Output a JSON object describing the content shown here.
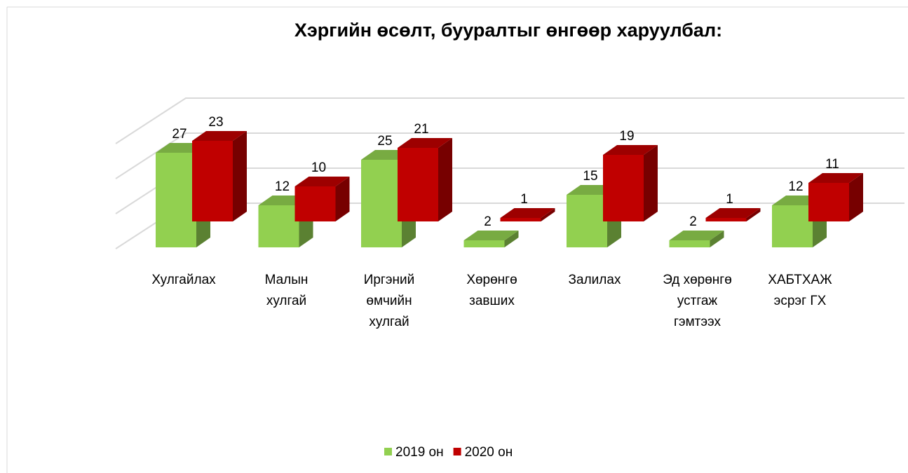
{
  "chart_data": {
    "type": "bar3d",
    "title": "Хэргийн өсөлт, бууралтыг өнгөөр харуулбал:",
    "categories": [
      "Хулгайлах",
      "Малын хулгай",
      "Иргэний өмчийн хулгай",
      "Хөрөнгө завших",
      "Залилах",
      "Эд хөрөнгө устгаж гэмтээх",
      "ХАБТХАЖ эсрэг ГХ"
    ],
    "series": [
      {
        "name": "2019 он",
        "color": "#92d050",
        "values": [
          27,
          12,
          25,
          2,
          15,
          2,
          12
        ]
      },
      {
        "name": "2020 он",
        "color": "#c00000",
        "values": [
          23,
          10,
          21,
          1,
          19,
          1,
          11
        ]
      }
    ],
    "ylim": [
      0,
      30
    ],
    "yticks": [
      0,
      10,
      20,
      30
    ],
    "grid": true,
    "legend": "bottom"
  }
}
